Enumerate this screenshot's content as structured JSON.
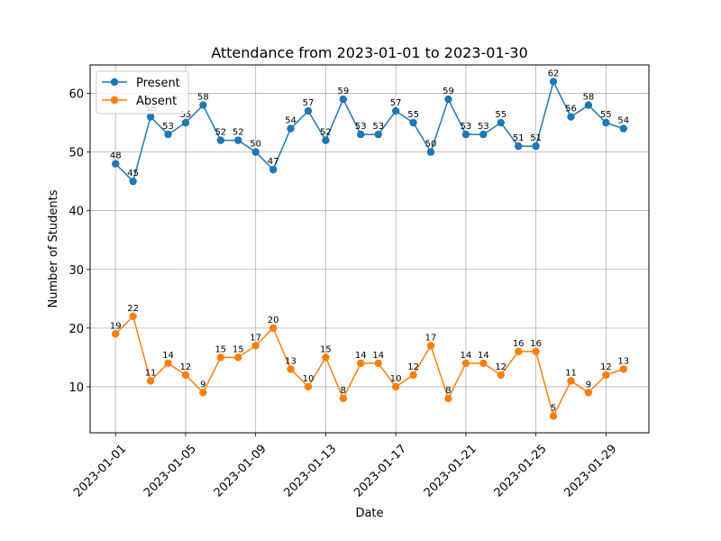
{
  "chart_data": {
    "type": "line",
    "title": "Attendance from 2023-01-01 to 2023-01-30",
    "xlabel": "Date",
    "ylabel": "Number of Students",
    "x": [
      "2023-01-01",
      "2023-01-02",
      "2023-01-03",
      "2023-01-04",
      "2023-01-05",
      "2023-01-06",
      "2023-01-07",
      "2023-01-08",
      "2023-01-09",
      "2023-01-10",
      "2023-01-11",
      "2023-01-12",
      "2023-01-13",
      "2023-01-14",
      "2023-01-15",
      "2023-01-16",
      "2023-01-17",
      "2023-01-18",
      "2023-01-19",
      "2023-01-20",
      "2023-01-21",
      "2023-01-22",
      "2023-01-23",
      "2023-01-24",
      "2023-01-25",
      "2023-01-26",
      "2023-01-27",
      "2023-01-28",
      "2023-01-29",
      "2023-01-30"
    ],
    "x_ticks": [
      "2023-01-01",
      "2023-01-05",
      "2023-01-09",
      "2023-01-13",
      "2023-01-17",
      "2023-01-21",
      "2023-01-25",
      "2023-01-29"
    ],
    "y_ticks": [
      10,
      20,
      30,
      40,
      50,
      60
    ],
    "ylim": [
      2.15,
      64.85
    ],
    "grid": true,
    "legend": "upper left",
    "series": [
      {
        "name": "Present",
        "color": "#1f77b4",
        "values": [
          48,
          45,
          56,
          53,
          55,
          58,
          52,
          52,
          50,
          47,
          54,
          57,
          52,
          59,
          53,
          53,
          57,
          55,
          50,
          59,
          53,
          53,
          55,
          51,
          51,
          62,
          56,
          58,
          55,
          54
        ]
      },
      {
        "name": "Absent",
        "color": "#ff7f0e",
        "values": [
          19,
          22,
          11,
          14,
          12,
          9,
          15,
          15,
          17,
          20,
          13,
          10,
          15,
          8,
          14,
          14,
          10,
          12,
          17,
          8,
          14,
          14,
          12,
          16,
          16,
          5,
          11,
          9,
          12,
          13
        ]
      }
    ]
  }
}
